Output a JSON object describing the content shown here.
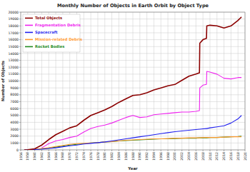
{
  "chart_data": {
    "type": "line",
    "title": "Monthly Number of Objects in Earth Orbit by Object Type",
    "x_label": "Year",
    "y_label": "Number of Objects",
    "x": [
      1957,
      1958,
      1960,
      1962,
      1964,
      1966,
      1968,
      1970,
      1972,
      1974,
      1976,
      1978,
      1980,
      1982,
      1984,
      1986,
      1988,
      1990,
      1992,
      1994,
      1996,
      1998,
      2000,
      2002,
      2004,
      2006,
      2007,
      2007.1,
      2008,
      2009,
      2009.1,
      2010,
      2012,
      2014,
      2016,
      2018,
      2019
    ],
    "series": [
      {
        "name": "Total Objects",
        "color": "#8b0000",
        "values": [
          0,
          20,
          150,
          700,
          1500,
          2200,
          2700,
          3200,
          3500,
          4300,
          5000,
          5400,
          5800,
          6300,
          6900,
          7400,
          7900,
          8000,
          8300,
          8700,
          9000,
          9300,
          9500,
          10100,
          10700,
          11000,
          11200,
          15500,
          16000,
          16200,
          18000,
          18100,
          18000,
          17700,
          18000,
          18800,
          19300
        ]
      },
      {
        "name": "Fragmentation Debris",
        "color": "#ee22ee",
        "values": [
          null,
          null,
          null,
          300,
          900,
          1300,
          1500,
          1800,
          2000,
          2600,
          3100,
          3400,
          3600,
          3900,
          4300,
          4700,
          5000,
          4700,
          4800,
          5100,
          5200,
          5300,
          5400,
          5500,
          5500,
          5600,
          5700,
          9000,
          9400,
          9500,
          11400,
          11300,
          11000,
          10400,
          10300,
          10500,
          10500
        ]
      },
      {
        "name": "Spacecraft",
        "color": "#1f1fee",
        "values": [
          0,
          10,
          50,
          100,
          200,
          300,
          450,
          600,
          700,
          850,
          950,
          1050,
          1150,
          1300,
          1450,
          1600,
          1750,
          1900,
          2050,
          2200,
          2350,
          2500,
          2650,
          2750,
          2850,
          2950,
          3000,
          3000,
          3050,
          3100,
          3100,
          3200,
          3350,
          3500,
          3900,
          4500,
          5000
        ]
      },
      {
        "name": "Mission-related Debris",
        "color": "#ff9a2e",
        "values": [
          null,
          5,
          60,
          200,
          300,
          500,
          650,
          800,
          900,
          950,
          1000,
          1050,
          1150,
          1200,
          1300,
          1400,
          1450,
          1500,
          1550,
          1600,
          1600,
          1650,
          1700,
          1700,
          1750,
          1750,
          1750,
          1750,
          1800,
          1800,
          1800,
          1800,
          1800,
          1850,
          1900,
          1900,
          1900
        ]
      },
      {
        "name": "Rocket Bodies",
        "color": "#228b22",
        "values": [
          null,
          5,
          40,
          150,
          250,
          400,
          550,
          700,
          800,
          900,
          1000,
          1050,
          1150,
          1200,
          1300,
          1350,
          1400,
          1450,
          1500,
          1550,
          1600,
          1600,
          1650,
          1700,
          1700,
          1700,
          1750,
          1750,
          1750,
          1750,
          1750,
          1800,
          1800,
          1850,
          1900,
          1950,
          2000
        ]
      }
    ],
    "xlim": [
      1956,
      2020
    ],
    "xticks": [
      1956,
      1958,
      1960,
      1962,
      1964,
      1966,
      1968,
      1970,
      1972,
      1974,
      1976,
      1978,
      1980,
      1982,
      1984,
      1986,
      1988,
      1990,
      1992,
      1994,
      1996,
      1998,
      2000,
      2002,
      2004,
      2006,
      2008,
      2010,
      2012,
      2014,
      2016,
      2018,
      2020
    ],
    "ylim": [
      0,
      20000
    ],
    "yticks": [
      0,
      1000,
      2000,
      3000,
      4000,
      5000,
      6000,
      7000,
      8000,
      9000,
      10000,
      11000,
      12000,
      13000,
      14000,
      15000,
      16000,
      17000,
      18000,
      19000,
      20000
    ],
    "grid": true,
    "legend": "upper left"
  }
}
